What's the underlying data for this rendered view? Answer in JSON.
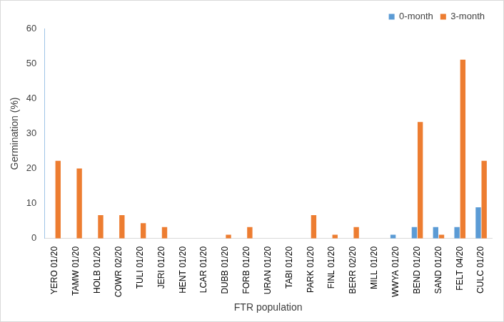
{
  "chart_data": {
    "type": "bar",
    "categories": [
      "YERO 01/20",
      "TAMW 01/20",
      "HOLB 01/20",
      "COWR 02/20",
      "TULI 01/20",
      "JERI 01/20",
      "HENT 01/20",
      "LCAR 01/20",
      "DUBB 01/20",
      "FORB 01/20",
      "URAN 01/20",
      "TABI 01/20",
      "PARK 01/20",
      "FINL 01/20",
      "BERR 02/20",
      "MILL 01/20",
      "WWYA 01/20",
      "BEND 01/20",
      "SAND 01/20",
      "FELT 04/20",
      "CULC 01/20"
    ],
    "series": [
      {
        "name": "0-month",
        "color": "#5b9bd5",
        "values": [
          0,
          0,
          0,
          0,
          0,
          0,
          0,
          0,
          0,
          0,
          0,
          0,
          0,
          0,
          0,
          0,
          1.1,
          3.3,
          3.3,
          3.3,
          8.9
        ]
      },
      {
        "name": "3-month",
        "color": "#ed7d31",
        "values": [
          22.2,
          20,
          6.7,
          6.7,
          4.4,
          3.3,
          0,
          0,
          1.1,
          3.3,
          0,
          0,
          6.7,
          1.1,
          3.3,
          0,
          0,
          33.3,
          1.1,
          51.1,
          22.2
        ]
      }
    ],
    "x_label": "FTR population",
    "y_label": "Germination (%)",
    "ylim": [
      0,
      60
    ],
    "yticks": [
      0,
      10,
      20,
      30,
      40,
      50,
      60
    ],
    "grid": false,
    "legend": "top-right"
  }
}
